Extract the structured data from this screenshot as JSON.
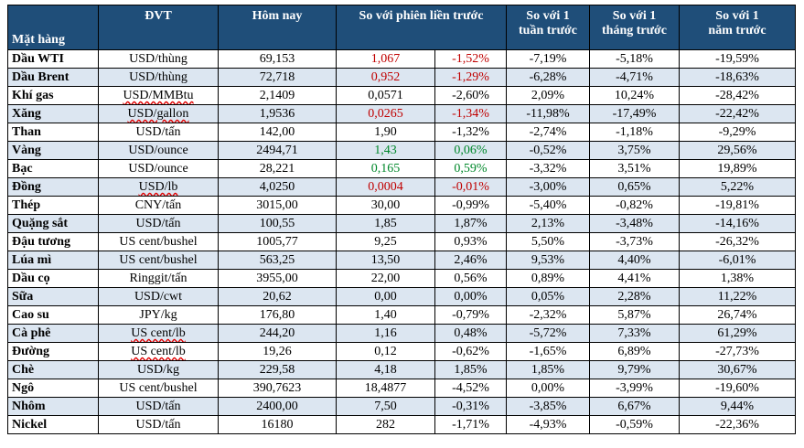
{
  "headers": {
    "item": "Mặt hàng",
    "unit": "ĐVT",
    "today": "Hôm nay",
    "prev_session": "So với phiên liền trước",
    "week_l1": "So với 1",
    "week_l2": "tuần trước",
    "month_l1": "So với 1",
    "month_l2": "tháng trước",
    "year_l1": "So với 1",
    "year_l2": "năm trước"
  },
  "colors": {
    "header_bg": "#1f4e79",
    "alt_row_bg": "#dce6f1",
    "negative": "#c00000",
    "positive": "#00882b"
  },
  "rows": [
    {
      "name": "Dầu WTI",
      "unit": "USD/thùng",
      "today": "69,153",
      "change": "1,067",
      "pct": "-1,52%",
      "week": "-7,19%",
      "month": "-5,18%",
      "year": "-19,59%",
      "color": "red"
    },
    {
      "name": "Dầu Brent",
      "unit": "USD/thùng",
      "today": "72,718",
      "change": "0,952",
      "pct": "-1,29%",
      "week": "-6,28%",
      "month": "-4,71%",
      "year": "-18,63%",
      "color": "red"
    },
    {
      "name": "Khí gas",
      "unit": "USD/MMBtu",
      "today": "2,1409",
      "change": "0,0571",
      "pct": "-2,60%",
      "week": "2,09%",
      "month": "10,24%",
      "year": "-28,42%",
      "color": ""
    },
    {
      "name": "Xăng",
      "unit": "USD/gallon",
      "today": "1,9536",
      "change": "0,0265",
      "pct": "-1,34%",
      "week": "-11,98%",
      "month": "-17,49%",
      "year": "-22,42%",
      "color": "red"
    },
    {
      "name": "Than",
      "unit": "USD/tấn",
      "today": "142,00",
      "change": "1,90",
      "pct": "-1,32%",
      "week": "-2,74%",
      "month": "-1,18%",
      "year": "-9,29%",
      "color": ""
    },
    {
      "name": "Vàng",
      "unit": "USD/ounce",
      "today": "2494,71",
      "change": "1,43",
      "pct": "0,06%",
      "week": "-0,52%",
      "month": "3,75%",
      "year": "29,56%",
      "color": "green"
    },
    {
      "name": "Bạc",
      "unit": "USD/ounce",
      "today": "28,221",
      "change": "0,165",
      "pct": "0,59%",
      "week": "-3,32%",
      "month": "3,51%",
      "year": "19,89%",
      "color": "green"
    },
    {
      "name": "Đồng",
      "unit": "USD/lb",
      "today": "4,0250",
      "change": "0,0004",
      "pct": "-0,01%",
      "week": "-3,00%",
      "month": "0,65%",
      "year": "5,22%",
      "color": "red"
    },
    {
      "name": "Thép",
      "unit": "CNY/tấn",
      "today": "3015,00",
      "change": "30,00",
      "pct": "-0,99%",
      "week": "-5,40%",
      "month": "-0,82%",
      "year": "-19,81%",
      "color": ""
    },
    {
      "name": "Quặng sắt",
      "unit": "USD/tấn",
      "today": "100,55",
      "change": "1,85",
      "pct": "1,87%",
      "week": "2,13%",
      "month": "-3,48%",
      "year": "-14,16%",
      "color": ""
    },
    {
      "name": "Đậu tương",
      "unit": "US cent/bushel",
      "today": "1005,77",
      "change": "9,25",
      "pct": "0,93%",
      "week": "5,50%",
      "month": "-3,73%",
      "year": "-26,32%",
      "color": ""
    },
    {
      "name": "Lúa mì",
      "unit": "US cent/bushel",
      "today": "563,25",
      "change": "13,50",
      "pct": "2,46%",
      "week": "9,53%",
      "month": "4,40%",
      "year": "-6,01%",
      "color": ""
    },
    {
      "name": "Dầu cọ",
      "unit": "Ringgit/tấn",
      "today": "3955,00",
      "change": "22,00",
      "pct": "0,56%",
      "week": "0,89%",
      "month": "4,41%",
      "year": "1,38%",
      "color": ""
    },
    {
      "name": "Sữa",
      "unit": "USD/cwt",
      "today": "20,62",
      "change": "0,00",
      "pct": "0,00%",
      "week": "0,05%",
      "month": "2,28%",
      "year": "11,22%",
      "color": ""
    },
    {
      "name": "Cao su",
      "unit": "JPY/kg",
      "today": "176,80",
      "change": "1,40",
      "pct": "-0,79%",
      "week": "-2,32%",
      "month": "5,87%",
      "year": "26,74%",
      "color": ""
    },
    {
      "name": "Cà phê",
      "unit": "US cent/lb",
      "today": "244,20",
      "change": "1,16",
      "pct": "0,48%",
      "week": "-5,72%",
      "month": "7,33%",
      "year": "61,29%",
      "color": ""
    },
    {
      "name": "Đường",
      "unit": "US cent/lb",
      "today": "19,26",
      "change": "0,12",
      "pct": "-0,62%",
      "week": "-1,65%",
      "month": "6,89%",
      "year": "-27,73%",
      "color": ""
    },
    {
      "name": "Chè",
      "unit": "USD/kg",
      "today": "229,58",
      "change": "4,18",
      "pct": "1,85%",
      "week": "1,85%",
      "month": "9,79%",
      "year": "30,67%",
      "color": ""
    },
    {
      "name": "Ngô",
      "unit": "US cent/bushel",
      "today": "390,7623",
      "change": "18,4877",
      "pct": "-4,52%",
      "week": "0,00%",
      "month": "-3,99%",
      "year": "-19,60%",
      "color": ""
    },
    {
      "name": "Nhôm",
      "unit": "USD/tấn",
      "today": "2400,00",
      "change": "7,50",
      "pct": "-0,31%",
      "week": "-3,85%",
      "month": "6,67%",
      "year": "9,44%",
      "color": ""
    },
    {
      "name": "Nickel",
      "unit": "USD/tấn",
      "today": "16180",
      "change": "282",
      "pct": "-1,71%",
      "week": "-4,93%",
      "month": "-0,59%",
      "year": "-22,36%",
      "color": ""
    }
  ]
}
